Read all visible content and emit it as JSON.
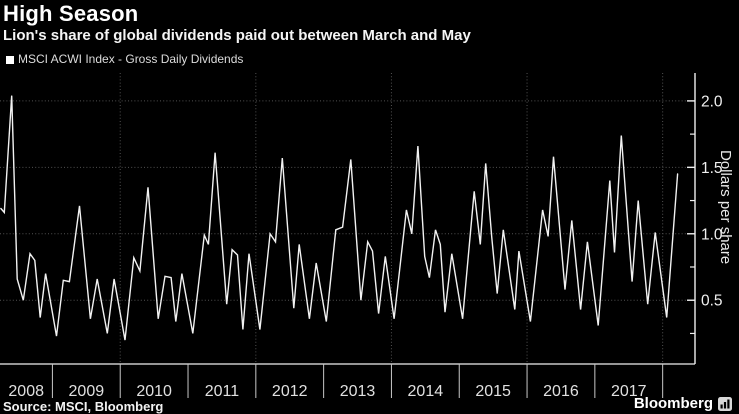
{
  "header": {
    "title": "High Season",
    "subtitle": "Lion's share of global dividends paid out between March and May"
  },
  "legend": {
    "label": "MSCI ACWI Index - Gross Daily Dividends"
  },
  "footer": {
    "source": "Source: MSCI, Bloomberg",
    "brand": "Bloomberg"
  },
  "colors": {
    "background": "#000000",
    "line": "#f2f2f2",
    "grid": "#525252",
    "axis": "#f0f0f0",
    "tick_label": "#f0f0f0",
    "year_label": "#e0e0e0",
    "separator": "#c8c8c8"
  },
  "chart_data": {
    "type": "line",
    "title": "High Season",
    "subtitle": "Lion's share of global dividends paid out between March and May",
    "series_name": "MSCI ACWI Index - Gross Daily Dividends",
    "xlabel": "",
    "ylabel": "Dollars per share",
    "legend_position": "top-left",
    "grid": "dotted",
    "x_axis": {
      "labels": [
        "2008",
        "2009",
        "2010",
        "2011",
        "2012",
        "2013",
        "2014",
        "2015",
        "2016",
        "2017"
      ],
      "tick_years": [
        2009,
        2010,
        2011,
        2012,
        2013,
        2014,
        2015,
        2016,
        2017,
        2018
      ],
      "gridline_years": [
        2010,
        2012,
        2014,
        2016,
        2018
      ],
      "range": [
        2008.227,
        2018.477
      ]
    },
    "y_axis": {
      "label": "Dollars per share",
      "ticks": [
        0.5,
        1.0,
        1.5,
        2.0
      ],
      "minor_ticks": [
        0.25,
        0.75,
        1.25,
        1.75
      ],
      "range": [
        0.02,
        2.21
      ]
    },
    "points": [
      [
        2008.24,
        1.19
      ],
      [
        2008.29,
        1.16
      ],
      [
        2008.4,
        2.04
      ],
      [
        2008.48,
        0.66
      ],
      [
        2008.57,
        0.5
      ],
      [
        2008.67,
        0.85
      ],
      [
        2008.74,
        0.8
      ],
      [
        2008.82,
        0.37
      ],
      [
        2008.9,
        0.7
      ],
      [
        2009.06,
        0.23
      ],
      [
        2009.16,
        0.65
      ],
      [
        2009.25,
        0.64
      ],
      [
        2009.4,
        1.21
      ],
      [
        2009.56,
        0.36
      ],
      [
        2009.66,
        0.66
      ],
      [
        2009.81,
        0.25
      ],
      [
        2009.91,
        0.66
      ],
      [
        2010.07,
        0.2
      ],
      [
        2010.2,
        0.82
      ],
      [
        2010.29,
        0.72
      ],
      [
        2010.41,
        1.35
      ],
      [
        2010.56,
        0.36
      ],
      [
        2010.66,
        0.68
      ],
      [
        2010.75,
        0.67
      ],
      [
        2010.82,
        0.34
      ],
      [
        2010.91,
        0.7
      ],
      [
        2011.07,
        0.25
      ],
      [
        2011.24,
        0.99
      ],
      [
        2011.3,
        0.92
      ],
      [
        2011.4,
        1.61
      ],
      [
        2011.57,
        0.47
      ],
      [
        2011.65,
        0.88
      ],
      [
        2011.73,
        0.84
      ],
      [
        2011.81,
        0.28
      ],
      [
        2011.9,
        0.85
      ],
      [
        2012.06,
        0.28
      ],
      [
        2012.21,
        1.0
      ],
      [
        2012.29,
        0.94
      ],
      [
        2012.39,
        1.57
      ],
      [
        2012.56,
        0.44
      ],
      [
        2012.64,
        0.92
      ],
      [
        2012.79,
        0.36
      ],
      [
        2012.89,
        0.78
      ],
      [
        2013.04,
        0.34
      ],
      [
        2013.18,
        1.03
      ],
      [
        2013.28,
        1.05
      ],
      [
        2013.4,
        1.56
      ],
      [
        2013.55,
        0.5
      ],
      [
        2013.65,
        0.94
      ],
      [
        2013.72,
        0.87
      ],
      [
        2013.81,
        0.4
      ],
      [
        2013.91,
        0.83
      ],
      [
        2014.04,
        0.36
      ],
      [
        2014.22,
        1.18
      ],
      [
        2014.3,
        1.0
      ],
      [
        2014.39,
        1.66
      ],
      [
        2014.49,
        0.83
      ],
      [
        2014.56,
        0.67
      ],
      [
        2014.65,
        1.03
      ],
      [
        2014.72,
        0.92
      ],
      [
        2014.79,
        0.41
      ],
      [
        2014.89,
        0.85
      ],
      [
        2015.05,
        0.36
      ],
      [
        2015.22,
        1.32
      ],
      [
        2015.31,
        0.92
      ],
      [
        2015.39,
        1.53
      ],
      [
        2015.48,
        0.97
      ],
      [
        2015.56,
        0.55
      ],
      [
        2015.65,
        1.03
      ],
      [
        2015.82,
        0.43
      ],
      [
        2015.88,
        0.87
      ],
      [
        2016.05,
        0.34
      ],
      [
        2016.23,
        1.18
      ],
      [
        2016.31,
        0.98
      ],
      [
        2016.39,
        1.58
      ],
      [
        2016.56,
        0.58
      ],
      [
        2016.66,
        1.1
      ],
      [
        2016.79,
        0.43
      ],
      [
        2016.89,
        0.94
      ],
      [
        2017.05,
        0.31
      ],
      [
        2017.22,
        1.4
      ],
      [
        2017.29,
        0.86
      ],
      [
        2017.39,
        1.74
      ],
      [
        2017.55,
        0.64
      ],
      [
        2017.64,
        1.25
      ],
      [
        2017.78,
        0.47
      ],
      [
        2017.89,
        1.01
      ],
      [
        2018.06,
        0.37
      ],
      [
        2018.22,
        1.45
      ]
    ]
  }
}
